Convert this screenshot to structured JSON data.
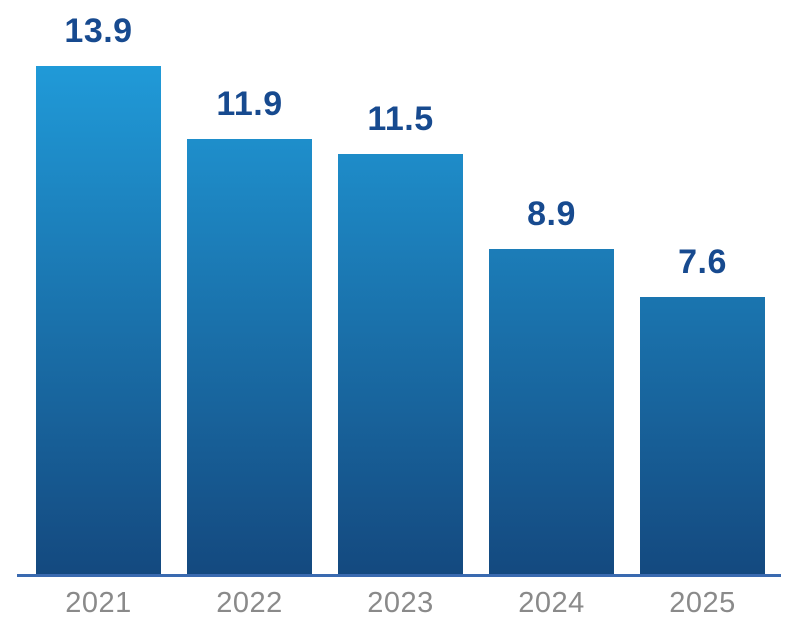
{
  "chart_data": {
    "type": "bar",
    "categories": [
      "2021",
      "2022",
      "2023",
      "2024",
      "2025"
    ],
    "values": [
      13.9,
      11.9,
      11.5,
      8.9,
      7.6
    ],
    "data_labels": [
      "13.9",
      "11.9",
      "11.5",
      "8.9",
      "7.6"
    ],
    "title": "",
    "xlabel": "",
    "ylabel": "",
    "ylim": [
      0,
      13.9
    ],
    "grid": false,
    "legend_position": "none",
    "colors": {
      "bar_gradient_top": "#209ad8",
      "bar_gradient_bottom": "#14497f",
      "value_label": "#174a8f",
      "axis_line": "#3a6ab0",
      "tick_label": "#8a8a8a",
      "background": "#ffffff"
    }
  }
}
